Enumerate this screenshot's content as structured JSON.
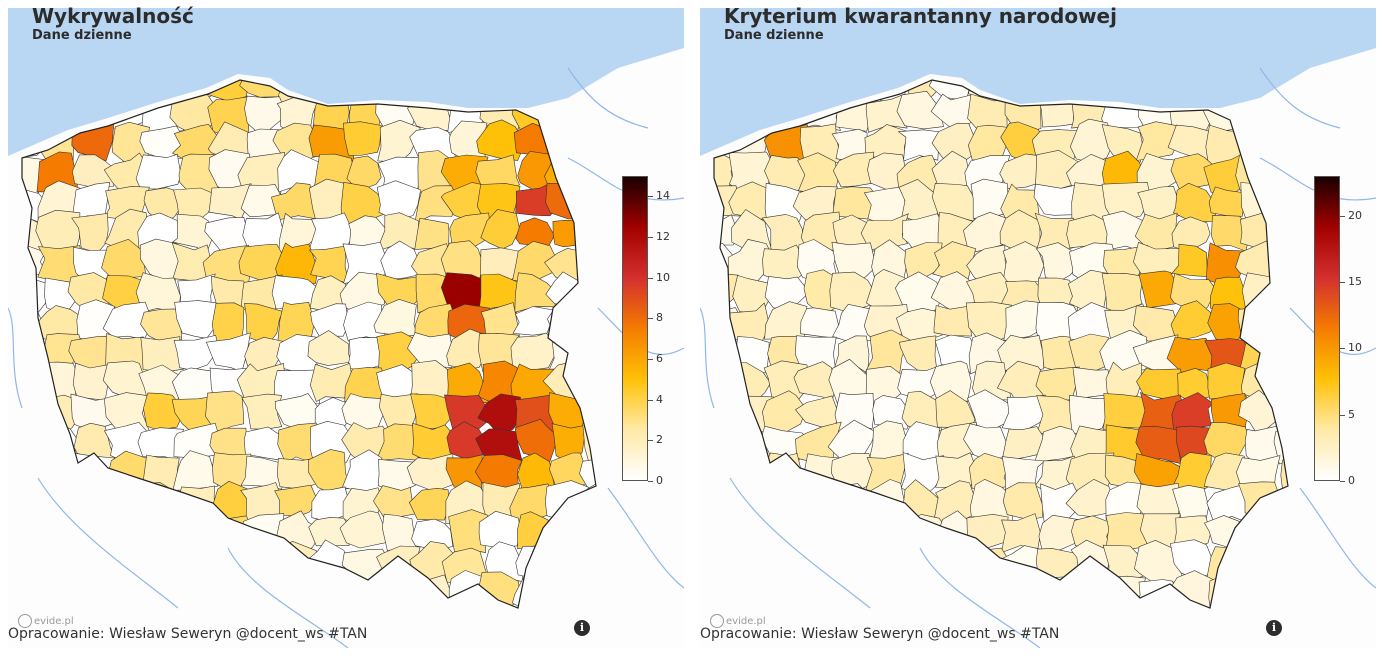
{
  "panels": [
    {
      "title": "Wykrywalność",
      "subtitle": "Dane dzienne",
      "footer": "Opracowanie: Wiesław Seweryn @docent_ws #TAN",
      "brand": "evide.pl",
      "legend": {
        "min": 0,
        "max": 15,
        "ticks": [
          "0",
          "2",
          "4",
          "6",
          "8",
          "10",
          "12",
          "14"
        ]
      },
      "colorscale": [
        "#ffffff",
        "#ffe9a6",
        "#ffc107",
        "#f57c00",
        "#d32f2f",
        "#a30000",
        "#1a0000"
      ]
    },
    {
      "title": "Kryterium kwarantanny narodowej",
      "subtitle": "Dane dzienne",
      "footer": "Opracowanie: Wiesław Seweryn @docent_ws #TAN",
      "brand": "evide.pl",
      "legend": {
        "min": 0,
        "max": 23,
        "ticks": [
          "0",
          "5",
          "10",
          "15",
          "20"
        ]
      },
      "colorscale": [
        "#ffffff",
        "#ffe9a6",
        "#ffc107",
        "#f57c00",
        "#d32f2f",
        "#a30000",
        "#1a0000"
      ]
    }
  ],
  "icons": {
    "info": "info-icon",
    "brand": "copyright-icon"
  },
  "colors": {
    "sea": "#b9d7f3",
    "land": "#ffffff",
    "border": "#333333",
    "river": "#8fb8e8"
  }
}
